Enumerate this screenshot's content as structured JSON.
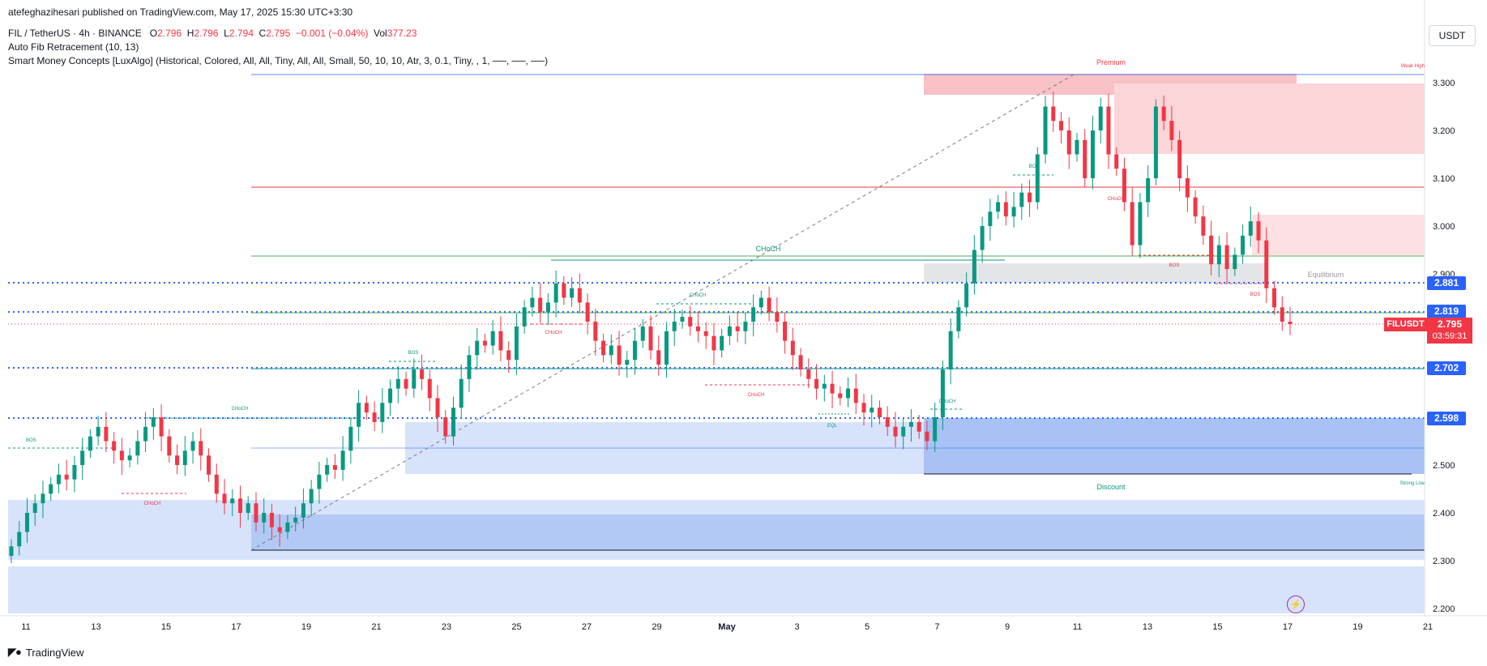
{
  "header": {
    "publish_line": "atefeghazihesari published on TradingView.com, May 17, 2025 15:30 UTC+3:30",
    "symbol": "FIL / TetherUS · 4h · BINANCE",
    "o_label": "O",
    "o_val": "2.796",
    "h_label": "H",
    "h_val": "2.796",
    "l_label": "L",
    "l_val": "2.794",
    "c_label": "C",
    "c_val": "2.795",
    "change": "−0.001 (−0.04%)",
    "vol_label": "Vol",
    "vol_val": "377.23",
    "fib_indicator": "Auto Fib Retracement (10, 13)",
    "smc_indicator": "Smart Money Concepts [LuxAlgo] (Historical, Colored, All, All, Tiny, All, All, Small, 50, 10, 10, Atr, 3, 0.1, Tiny, , 1, ──, ──, ──)"
  },
  "currency_button": "USDT",
  "footer_brand": "TradingView",
  "colors": {
    "up": "#089981",
    "down": "#f23645",
    "blue_line": "#2962ff",
    "fib_green": "#4caf50",
    "premium_zone": "#f7a9b0",
    "discount_zone": "#9ebbf5"
  },
  "price_tags": [
    {
      "value": "2.881",
      "color": "#2962ff"
    },
    {
      "value": "2.819",
      "color": "#2962ff"
    },
    {
      "value": "2.702",
      "color": "#2962ff"
    },
    {
      "value": "2.598",
      "color": "#2962ff"
    }
  ],
  "last_price": {
    "symbol": "FILUSDT",
    "value": "2.795",
    "countdown": "03:59:31"
  },
  "chart_data": {
    "type": "candlestick",
    "y_axis": {
      "ticks": [
        "3.300",
        "3.200",
        "3.100",
        "3.000",
        "2.900",
        "2.500",
        "2.400",
        "2.300",
        "2.200"
      ]
    },
    "x_axis": {
      "ticks": [
        "11",
        "13",
        "15",
        "17",
        "19",
        "21",
        "23",
        "25",
        "27",
        "29",
        "May",
        "3",
        "5",
        "7",
        "9",
        "11",
        "13",
        "15",
        "17",
        "19",
        "21"
      ]
    },
    "annotations": {
      "premium": "Premium",
      "discount": "Discount",
      "equilibrium": "Equilibrium",
      "weak_high": "Weak High",
      "strong_low": "Strong Low",
      "bos": "BOS",
      "choch": "CHoCH",
      "eql": "EQL"
    },
    "closes": [
      2.33,
      2.36,
      2.4,
      2.42,
      2.44,
      2.46,
      2.48,
      2.47,
      2.5,
      2.53,
      2.56,
      2.58,
      2.55,
      2.53,
      2.51,
      2.52,
      2.55,
      2.58,
      2.6,
      2.56,
      2.52,
      2.5,
      2.53,
      2.55,
      2.52,
      2.48,
      2.44,
      2.42,
      2.43,
      2.4,
      2.42,
      2.38,
      2.4,
      2.37,
      2.36,
      2.38,
      2.39,
      2.42,
      2.45,
      2.48,
      2.5,
      2.49,
      2.53,
      2.58,
      2.63,
      2.61,
      2.59,
      2.63,
      2.66,
      2.68,
      2.66,
      2.7,
      2.68,
      2.64,
      2.6,
      2.56,
      2.62,
      2.68,
      2.73,
      2.76,
      2.75,
      2.78,
      2.74,
      2.72,
      2.79,
      2.83,
      2.85,
      2.82,
      2.84,
      2.88,
      2.85,
      2.87,
      2.84,
      2.8,
      2.76,
      2.73,
      2.75,
      2.71,
      2.72,
      2.76,
      2.79,
      2.74,
      2.71,
      2.78,
      2.8,
      2.81,
      2.79,
      2.78,
      2.77,
      2.74,
      2.77,
      2.79,
      2.78,
      2.8,
      2.83,
      2.85,
      2.82,
      2.8,
      2.76,
      2.73,
      2.7,
      2.68,
      2.66,
      2.67,
      2.65,
      2.64,
      2.66,
      2.63,
      2.61,
      2.62,
      2.6,
      2.58,
      2.56,
      2.58,
      2.59,
      2.57,
      2.55,
      2.6,
      2.7,
      2.78,
      2.83,
      2.88,
      2.95,
      3.0,
      3.03,
      3.05,
      3.02,
      3.04,
      3.07,
      3.05,
      3.15,
      3.25,
      3.22,
      3.2,
      3.15,
      3.18,
      3.1,
      3.2,
      3.25,
      3.15,
      3.12,
      3.05,
      2.96,
      3.05,
      3.1,
      3.25,
      3.22,
      3.18,
      3.1,
      3.06,
      3.02,
      2.98,
      2.92,
      2.96,
      2.91,
      2.94,
      2.98,
      3.01,
      2.97,
      2.87,
      2.83,
      2.8,
      2.795
    ]
  }
}
